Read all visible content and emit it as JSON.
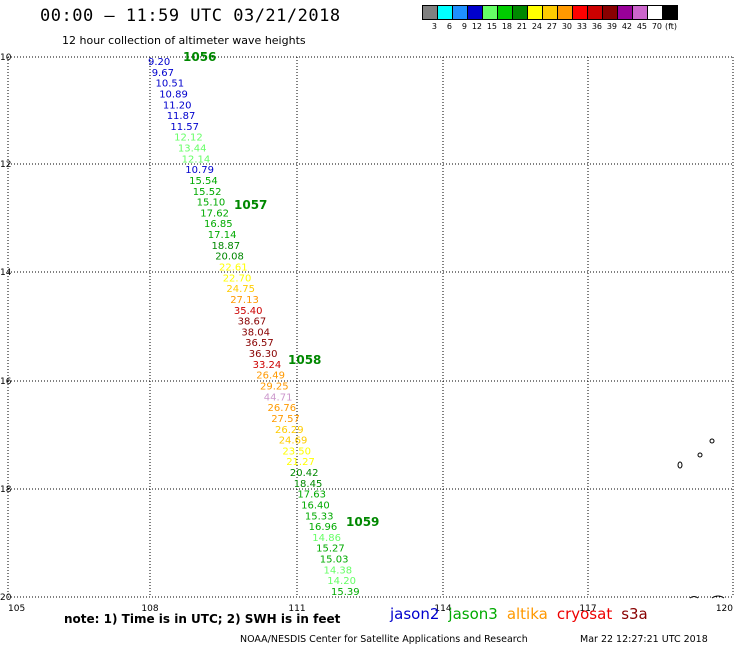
{
  "header": {
    "title": "00:00 – 11:59 UTC 03/21/2018",
    "subtitle": "12 hour collection of altimeter wave heights"
  },
  "colorbar": {
    "unit": "(ft)",
    "colors": [
      "#808080",
      "#00ffff",
      "#1e90ff",
      "#0000cd",
      "#66ff66",
      "#00cc00",
      "#008800",
      "#ffff00",
      "#ffcc00",
      "#ff9900",
      "#ff0000",
      "#cc0000",
      "#880000",
      "#990099",
      "#cc66cc",
      "#ffffff",
      "#000000"
    ],
    "labels": [
      "3",
      "6",
      "9",
      "12",
      "15",
      "18",
      "21",
      "24",
      "27",
      "30",
      "33",
      "36",
      "39",
      "42",
      "45",
      "70"
    ]
  },
  "axes": {
    "lon_labels": [
      "105",
      "108",
      "111",
      "114",
      "117",
      "120"
    ],
    "lat_labels": [
      "10",
      "12",
      "14",
      "16",
      "18",
      "20"
    ]
  },
  "track_points": [
    {
      "label": "9.20",
      "color": "#0000cd"
    },
    {
      "label": "9.67",
      "color": "#0000cd"
    },
    {
      "label": "10.51",
      "color": "#0000cd"
    },
    {
      "label": "10.89",
      "color": "#0000cd"
    },
    {
      "label": "11.20",
      "color": "#0000cd"
    },
    {
      "label": "11.87",
      "color": "#0000cd"
    },
    {
      "label": "11.57",
      "color": "#0000cd"
    },
    {
      "label": "12.12",
      "color": "#66ff66"
    },
    {
      "label": "13.44",
      "color": "#66ff66"
    },
    {
      "label": "12.14",
      "color": "#66ff66"
    },
    {
      "label": "10.79",
      "color": "#0000cd"
    },
    {
      "label": "15.54",
      "color": "#00aa00"
    },
    {
      "label": "15.52",
      "color": "#00aa00"
    },
    {
      "label": "15.10",
      "color": "#00aa00"
    },
    {
      "label": "17.62",
      "color": "#00aa00"
    },
    {
      "label": "16.85",
      "color": "#00aa00"
    },
    {
      "label": "17.14",
      "color": "#00aa00"
    },
    {
      "label": "18.87",
      "color": "#008800"
    },
    {
      "label": "20.08",
      "color": "#008800"
    },
    {
      "label": "22.61",
      "color": "#ffff00"
    },
    {
      "label": "22.70",
      "color": "#ffff00"
    },
    {
      "label": "24.75",
      "color": "#ffcc00"
    },
    {
      "label": "27.13",
      "color": "#ff9900"
    },
    {
      "label": "35.40",
      "color": "#cc0000"
    },
    {
      "label": "38.67",
      "color": "#880000"
    },
    {
      "label": "38.04",
      "color": "#880000"
    },
    {
      "label": "36.57",
      "color": "#880000"
    },
    {
      "label": "36.30",
      "color": "#880000"
    },
    {
      "label": "33.24",
      "color": "#cc0000"
    },
    {
      "label": "26.49",
      "color": "#ff9900"
    },
    {
      "label": "29.25",
      "color": "#ff9900"
    },
    {
      "label": "44.71",
      "color": "#cc99cc"
    },
    {
      "label": "26.76",
      "color": "#ff9900"
    },
    {
      "label": "27.57",
      "color": "#ff9900"
    },
    {
      "label": "26.29",
      "color": "#ffcc00"
    },
    {
      "label": "24.69",
      "color": "#ffcc00"
    },
    {
      "label": "23.50",
      "color": "#ffff00"
    },
    {
      "label": "21.27",
      "color": "#ffff00"
    },
    {
      "label": "20.42",
      "color": "#008800"
    },
    {
      "label": "18.45",
      "color": "#008800"
    },
    {
      "label": "17.63",
      "color": "#00aa00"
    },
    {
      "label": "16.40",
      "color": "#00aa00"
    },
    {
      "label": "15.33",
      "color": "#00aa00"
    },
    {
      "label": "16.96",
      "color": "#00aa00"
    },
    {
      "label": "14.86",
      "color": "#66ff66"
    },
    {
      "label": "15.27",
      "color": "#00aa00"
    },
    {
      "label": "15.03",
      "color": "#00aa00"
    },
    {
      "label": "14.38",
      "color": "#66ff66"
    },
    {
      "label": "14.20",
      "color": "#66ff66"
    },
    {
      "label": "15.39",
      "color": "#00aa00"
    }
  ],
  "time_markers": [
    {
      "label": "1056",
      "color": "#008800"
    },
    {
      "label": "1057",
      "color": "#008800"
    },
    {
      "label": "1058",
      "color": "#008800"
    },
    {
      "label": "1059",
      "color": "#008800"
    }
  ],
  "footer": {
    "note": "note: 1) Time is in UTC; 2) SWH is in feet",
    "satellites": [
      {
        "name": "jason2",
        "color": "#0000cd"
      },
      {
        "name": "jason3",
        "color": "#00aa00"
      },
      {
        "name": "altika",
        "color": "#ff9900"
      },
      {
        "name": "cryosat",
        "color": "#ee0000"
      },
      {
        "name": "s3a",
        "color": "#880000"
      }
    ],
    "credit": "NOAA/NESDIS Center for Satellite Applications and Research",
    "timestamp": "Mar 22 12:27:21 UTC 2018"
  }
}
